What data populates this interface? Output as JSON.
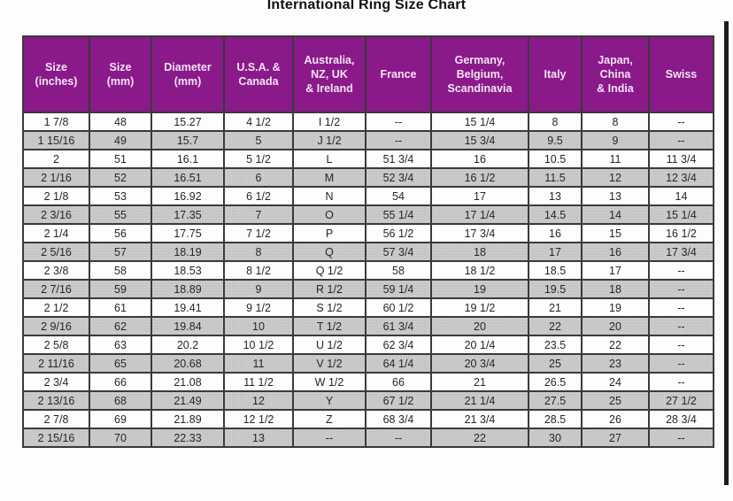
{
  "page": {
    "title": "International Ring Size Chart"
  },
  "chart_data": {
    "type": "table",
    "title": "International Ring Size Chart",
    "columns": [
      "Size\n(inches)",
      "Size\n(mm)",
      "Diameter\n(mm)",
      "U.S.A. &\nCanada",
      "Australia,\nNZ, UK\n& Ireland",
      "France",
      "Germany,\nBelgium,\nScandinavia",
      "Italy",
      "Japan,\nChina\n& India",
      "Swiss"
    ],
    "rows": [
      [
        "1  7/8",
        "48",
        "15.27",
        "4 1/2",
        "I 1/2",
        "--",
        "15 1/4",
        "8",
        "8",
        "--"
      ],
      [
        "1 15/16",
        "49",
        "15.7",
        "5",
        "J 1/2",
        "--",
        "15 3/4",
        "9.5",
        "9",
        "--"
      ],
      [
        "2",
        "51",
        "16.1",
        "5 1/2",
        "L",
        "51 3/4",
        "16",
        "10.5",
        "11",
        "11 3/4"
      ],
      [
        "2  1/16",
        "52",
        "16.51",
        "6",
        "M",
        "52 3/4",
        "16 1/2",
        "11.5",
        "12",
        "12 3/4"
      ],
      [
        "2  1/8",
        "53",
        "16.92",
        "6 1/2",
        "N",
        "54",
        "17",
        "13",
        "13",
        "14"
      ],
      [
        "2  3/16",
        "55",
        "17.35",
        "7",
        "O",
        "55 1/4",
        "17 1/4",
        "14.5",
        "14",
        "15 1/4"
      ],
      [
        "2  1/4",
        "56",
        "17.75",
        "7 1/2",
        "P",
        "56 1/2",
        "17 3/4",
        "16",
        "15",
        "16 1/2"
      ],
      [
        "2  5/16",
        "57",
        "18.19",
        "8",
        "Q",
        "57 3/4",
        "18",
        "17",
        "16",
        "17 3/4"
      ],
      [
        "2  3/8",
        "58",
        "18.53",
        "8 1/2",
        "Q 1/2",
        "58",
        "18 1/2",
        "18.5",
        "17",
        "--"
      ],
      [
        "2  7/16",
        "59",
        "18.89",
        "9",
        "R 1/2",
        "59 1/4",
        "19",
        "19.5",
        "18",
        "--"
      ],
      [
        "2  1/2",
        "61",
        "19.41",
        "9 1/2",
        "S 1/2",
        "60 1/2",
        "19 1/2",
        "21",
        "19",
        "--"
      ],
      [
        "2  9/16",
        "62",
        "19.84",
        "10",
        "T 1/2",
        "61 3/4",
        "20",
        "22",
        "20",
        "--"
      ],
      [
        "2  5/8",
        "63",
        "20.2",
        "10 1/2",
        "U 1/2",
        "62 3/4",
        "20 1/4",
        "23.5",
        "22",
        "--"
      ],
      [
        "2 11/16",
        "65",
        "20.68",
        "11",
        "V 1/2",
        "64 1/4",
        "20 3/4",
        "25",
        "23",
        "--"
      ],
      [
        "2  3/4",
        "66",
        "21.08",
        "11 1/2",
        "W 1/2",
        "66",
        "21",
        "26.5",
        "24",
        "--"
      ],
      [
        "2 13/16",
        "68",
        "21.49",
        "12",
        "Y",
        "67 1/2",
        "21 1/4",
        "27.5",
        "25",
        "27 1/2"
      ],
      [
        "2  7/8",
        "69",
        "21.89",
        "12 1/2",
        "Z",
        "68 3/4",
        "21 3/4",
        "28.5",
        "26",
        "28 3/4"
      ],
      [
        "2 15/16",
        "70",
        "22.33",
        "13",
        "--",
        "--",
        "22",
        "30",
        "27",
        "--"
      ]
    ],
    "layout_hints": {
      "striped": true,
      "first_data_row_background": "white",
      "legend": "none",
      "grid": "full-borders"
    },
    "colors": {
      "header_bg": "#8a1a8a",
      "header_text": "#f6e3f6",
      "row_bg": "#fdfdfd",
      "row_alt_bg": "#c6c6c6",
      "border": "#3a3a3a",
      "cell_text": "#262626",
      "title_text": "#111111"
    }
  }
}
